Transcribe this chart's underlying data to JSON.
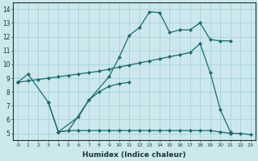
{
  "xlabel": "Humidex (Indice chaleur)",
  "bg_color": "#cce8ec",
  "line_color": "#1a6b6b",
  "xlim": [
    -0.5,
    23.5
  ],
  "ylim": [
    4.5,
    14.5
  ],
  "xtick_labels": [
    "0",
    "1",
    "2",
    "3",
    "4",
    "5",
    "6",
    "7",
    "8",
    "9",
    "10",
    "11",
    "12",
    "13",
    "14",
    "15",
    "16",
    "17",
    "18",
    "19",
    "20",
    "21",
    "22",
    "23"
  ],
  "ytick_labels": [
    "5",
    "6",
    "7",
    "8",
    "9",
    "10",
    "11",
    "12",
    "13",
    "14"
  ],
  "series": [
    {
      "x": [
        0,
        1,
        3,
        4,
        6,
        7,
        9,
        10,
        11,
        12,
        13,
        14,
        15,
        16,
        17,
        18,
        19,
        20,
        21
      ],
      "y": [
        8.7,
        9.3,
        7.25,
        5.1,
        6.2,
        7.4,
        9.1,
        10.5,
        12.1,
        12.65,
        13.8,
        13.75,
        12.3,
        12.5,
        12.5,
        13.0,
        11.8,
        11.7,
        11.7
      ]
    },
    {
      "x": [
        3,
        4,
        5,
        7,
        8,
        9,
        10,
        11
      ],
      "y": [
        7.25,
        5.1,
        5.2,
        7.4,
        8.0,
        8.4,
        8.6,
        8.7
      ]
    },
    {
      "x": [
        4,
        5,
        6,
        7,
        8,
        9,
        10,
        11,
        12,
        13,
        14,
        15,
        16,
        17,
        18,
        19,
        20,
        21,
        22,
        23
      ],
      "y": [
        5.1,
        5.2,
        5.2,
        5.2,
        5.2,
        5.2,
        5.2,
        5.2,
        5.2,
        5.2,
        5.2,
        5.2,
        5.2,
        5.2,
        5.2,
        5.2,
        5.1,
        5.0,
        5.0,
        4.9
      ]
    },
    {
      "x": [
        0,
        1,
        2,
        3,
        4,
        5,
        6,
        7,
        8,
        9,
        10,
        11,
        12,
        13,
        14,
        15,
        16,
        17,
        18,
        19,
        20,
        21
      ],
      "y": [
        8.7,
        8.8,
        8.9,
        9.0,
        9.1,
        9.2,
        9.3,
        9.4,
        9.5,
        9.65,
        9.8,
        9.95,
        10.1,
        10.25,
        10.4,
        10.55,
        10.7,
        10.85,
        11.5,
        9.4,
        6.7,
        5.1
      ]
    }
  ]
}
